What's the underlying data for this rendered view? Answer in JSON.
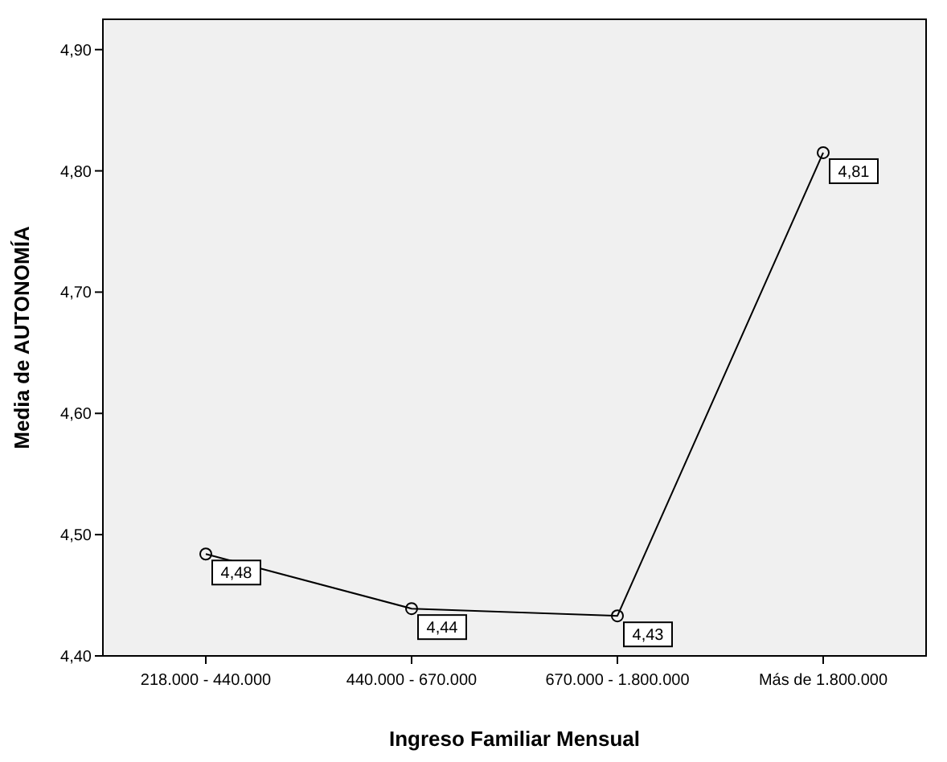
{
  "chart_data": {
    "type": "line",
    "xlabel": "Ingreso Familiar Mensual",
    "ylabel": "Media de AUTONOMÍA",
    "categories": [
      "218.000 - 440.000",
      "440.000 - 670.000",
      "670.000 - 1.800.000",
      "Más de 1.800.000"
    ],
    "series": [
      {
        "color": "#000000",
        "values": [
          4.484,
          4.439,
          4.433,
          4.815
        ],
        "value_labels": [
          "4,48",
          "4,44",
          "4,43",
          "4,81"
        ]
      }
    ],
    "ylim": [
      4.4,
      4.925
    ],
    "yticks": [
      {
        "value": 4.4,
        "label": "4,40"
      },
      {
        "value": 4.5,
        "label": "4,50"
      },
      {
        "value": 4.6,
        "label": "4,60"
      },
      {
        "value": 4.7,
        "label": "4,70"
      },
      {
        "value": 4.8,
        "label": "4,80"
      },
      {
        "value": 4.9,
        "label": "4,90"
      }
    ],
    "marker": "circle",
    "grid": false
  }
}
